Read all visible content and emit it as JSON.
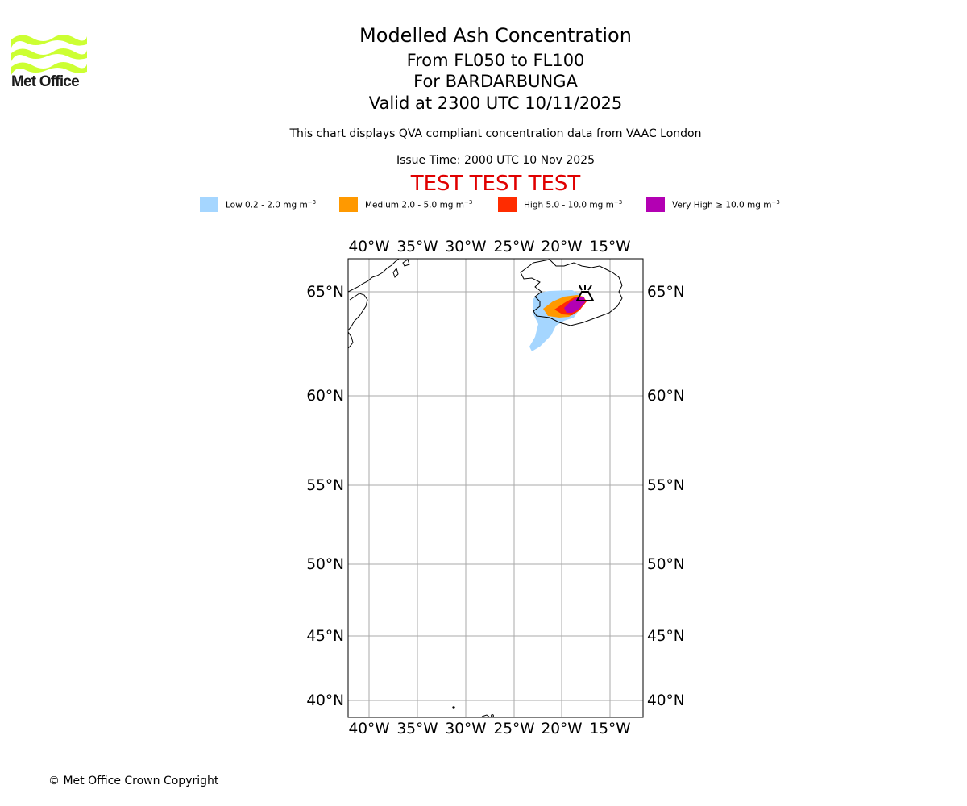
{
  "brand": {
    "logo_text": "Met Office",
    "logo_color": "#ccff33"
  },
  "header": {
    "title": "Modelled Ash Concentration",
    "levels": "From FL050 to FL100",
    "volcano": "For BARDARBUNGA",
    "valid": "Valid at 2300 UTC 10/11/2025",
    "subtitle": "This chart displays QVA compliant concentration data from VAAC London",
    "issue_time": "Issue Time: 2000 UTC 10 Nov 2025",
    "test_banner": "TEST TEST TEST",
    "test_color": "#e00000"
  },
  "legend": [
    {
      "name": "Low",
      "range": "0.2 - 2.0",
      "unit": "mg m",
      "exp": "−3",
      "color": "#a5d6ff"
    },
    {
      "name": "Medium",
      "range": "2.0 - 5.0",
      "unit": "mg m",
      "exp": "−3",
      "color": "#ff9900"
    },
    {
      "name": "High",
      "range": "5.0 - 10.0",
      "unit": "mg m",
      "exp": "−3",
      "color": "#ff2c00"
    },
    {
      "name": "Very High",
      "range": "≥  10.0",
      "unit": "mg m",
      "exp": "−3",
      "color": "#b300b3"
    }
  ],
  "map": {
    "lon_labels": [
      "40°W",
      "35°W",
      "30°W",
      "25°W",
      "20°W",
      "15°W"
    ],
    "lat_labels": [
      "65°N",
      "60°N",
      "55°N",
      "50°N",
      "45°N",
      "40°N"
    ],
    "volcano_icon": "volcano-icon"
  },
  "footer": {
    "copyright": "© Met Office Crown Copyright"
  }
}
